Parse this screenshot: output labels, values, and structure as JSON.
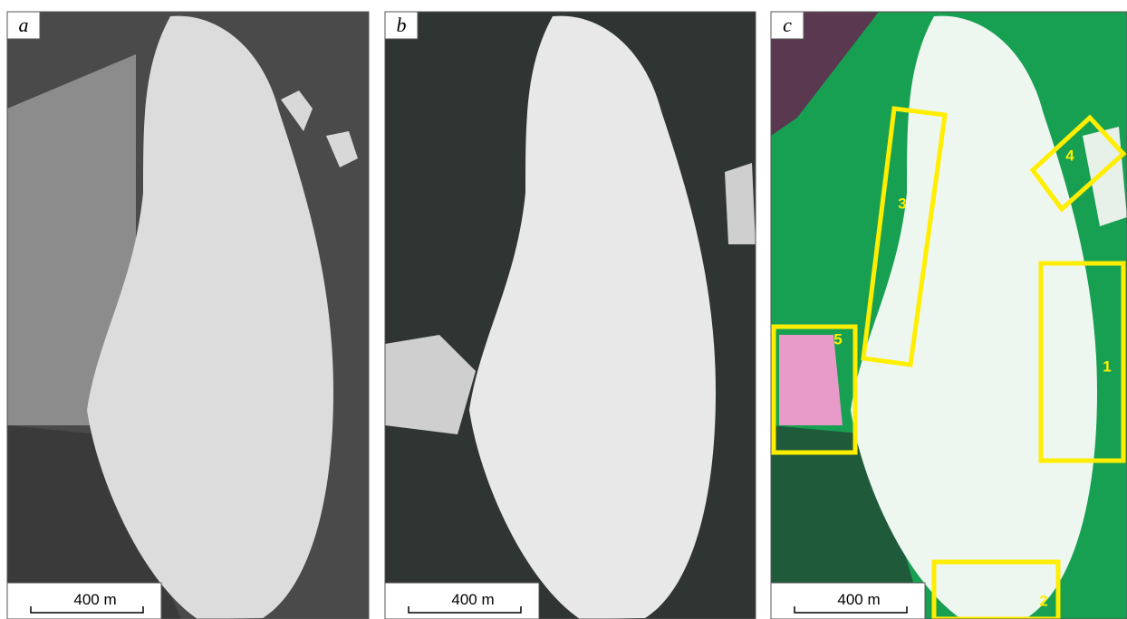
{
  "panels": [
    {
      "label": "a",
      "scale_bar": "400 m"
    },
    {
      "label": "b",
      "scale_bar": "400 m"
    },
    {
      "label": "c",
      "scale_bar": "400 m"
    }
  ],
  "regions": [
    {
      "label": "1"
    },
    {
      "label": "2"
    },
    {
      "label": "3"
    },
    {
      "label": "4"
    },
    {
      "label": "5"
    }
  ]
}
